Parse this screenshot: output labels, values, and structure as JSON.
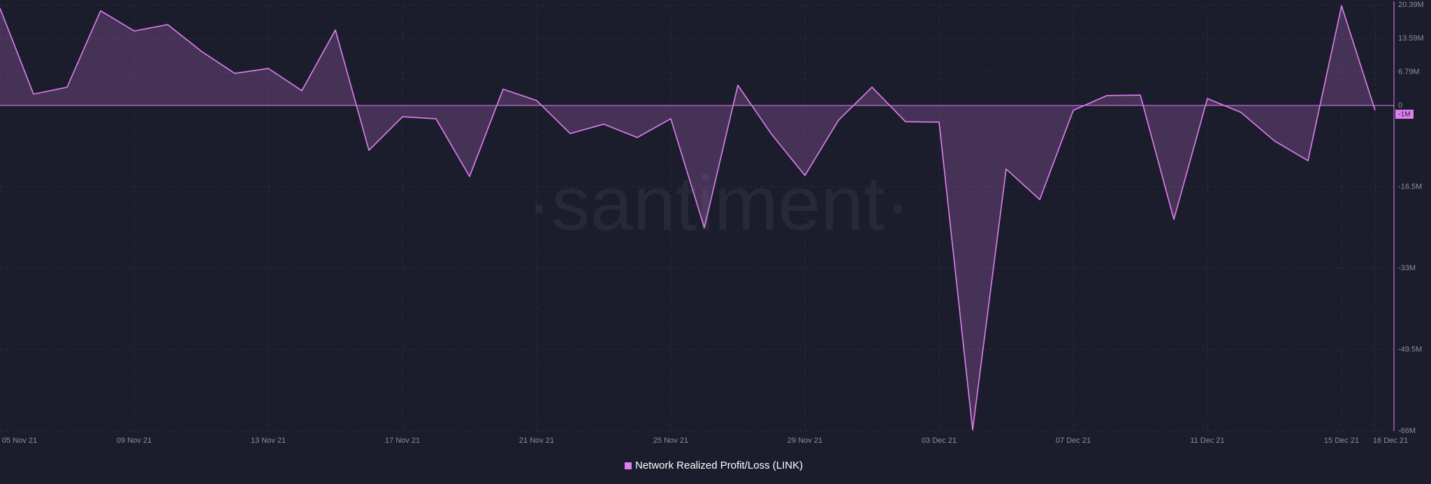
{
  "chart_data": {
    "type": "area",
    "watermark": "·santiment·",
    "categories": [
      "05 Nov 21",
      null,
      null,
      null,
      "09 Nov 21",
      null,
      null,
      null,
      "13 Nov 21",
      null,
      null,
      null,
      "17 Nov 21",
      null,
      null,
      null,
      "21 Nov 21",
      null,
      null,
      null,
      "25 Nov 21",
      null,
      null,
      null,
      "29 Nov 21",
      null,
      null,
      null,
      "03 Dec 21",
      null,
      null,
      null,
      "07 Dec 21",
      null,
      null,
      null,
      "11 Dec 21",
      null,
      null,
      null,
      "15 Dec 21",
      "16 Dec 21"
    ],
    "series": [
      {
        "name": "Network Realized Profit/Loss (LINK)",
        "color": "#e07ff0",
        "values": [
          19700000,
          2300000,
          3700000,
          19200000,
          15100000,
          16400000,
          11000000,
          6500000,
          7500000,
          3000000,
          15300000,
          -9100000,
          -2300000,
          -2700000,
          -14400000,
          3300000,
          1000000,
          -5700000,
          -3800000,
          -6500000,
          -2700000,
          -24800000,
          4100000,
          -5800000,
          -14200000,
          -3000000,
          3700000,
          -3300000,
          -3400000,
          -65800000,
          -12900000,
          -19100000,
          -1000000,
          2000000,
          2100000,
          -23100000,
          1400000,
          -1400000,
          -7200000,
          -11200000,
          20200000,
          -1000000
        ]
      }
    ],
    "current_value_label": "-1M",
    "ylim": [
      -66000000,
      20390000
    ],
    "yticks": [
      {
        "value": 20390000,
        "label": "20.39M"
      },
      {
        "value": 13590000,
        "label": "13.59M"
      },
      {
        "value": 6790000,
        "label": "6.79M"
      },
      0,
      {
        "value": -16500000,
        "label": "-16.5M"
      },
      {
        "value": -33000000,
        "label": "-33M"
      },
      {
        "value": -49500000,
        "label": "-49.5M"
      },
      {
        "value": -66000000,
        "label": "-66M"
      }
    ],
    "grid": true,
    "legend": "bottom"
  }
}
